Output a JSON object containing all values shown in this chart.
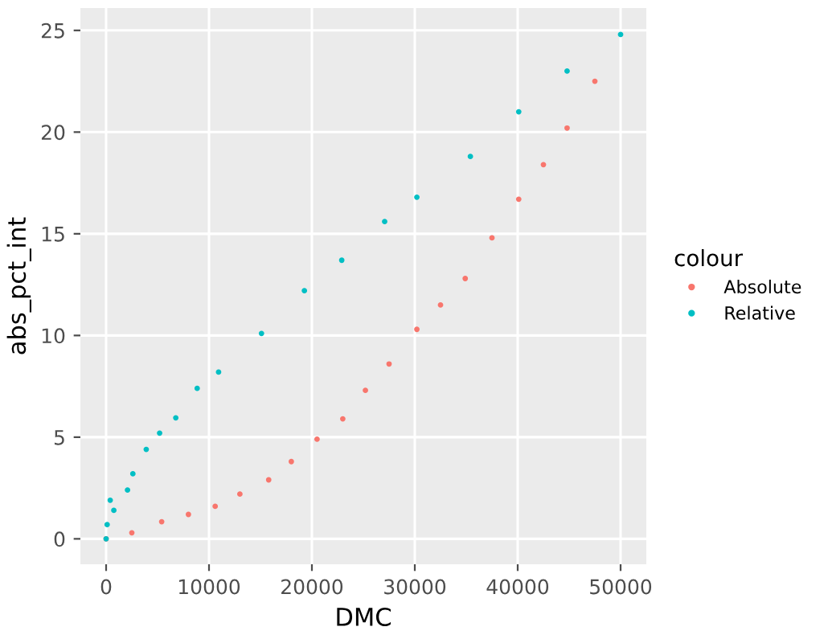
{
  "chart_data": {
    "type": "scatter",
    "xlabel": "DMC",
    "ylabel": "abs_pct_int",
    "legend_title": "colour",
    "legend": "right",
    "grid": true,
    "marker": "circle",
    "xlim": [
      -2500,
      52500
    ],
    "ylim": [
      -1.25,
      26.1
    ],
    "xticks": [
      0,
      10000,
      20000,
      30000,
      40000,
      50000
    ],
    "yticks": [
      0,
      5,
      10,
      15,
      20,
      25
    ],
    "series": [
      {
        "name": "Absolute",
        "color": "#f8766d",
        "x": [
          0,
          2500,
          5400,
          8000,
          10600,
          13000,
          15800,
          18000,
          20500,
          23000,
          25200,
          27500,
          30200,
          32500,
          34900,
          37500,
          40100,
          42500,
          44800,
          47500
        ],
        "values": [
          0,
          0.3,
          0.84,
          1.2,
          1.6,
          2.2,
          2.9,
          3.8,
          4.9,
          5.9,
          7.3,
          8.6,
          10.3,
          11.5,
          12.8,
          14.8,
          16.7,
          18.4,
          20.2,
          22.5
        ]
      },
      {
        "name": "Relative",
        "color": "#00bfc4",
        "x": [
          0,
          100,
          400,
          750,
          2080,
          2600,
          3900,
          5200,
          6770,
          8850,
          10930,
          15100,
          19270,
          22900,
          27070,
          30200,
          35400,
          40100,
          44800,
          50000
        ],
        "values": [
          0,
          0.7,
          1.9,
          1.4,
          2.4,
          3.2,
          4.4,
          5.2,
          5.95,
          7.4,
          8.2,
          10.1,
          12.2,
          13.7,
          15.6,
          16.8,
          18.8,
          21.0,
          23.0,
          24.8
        ]
      }
    ]
  }
}
